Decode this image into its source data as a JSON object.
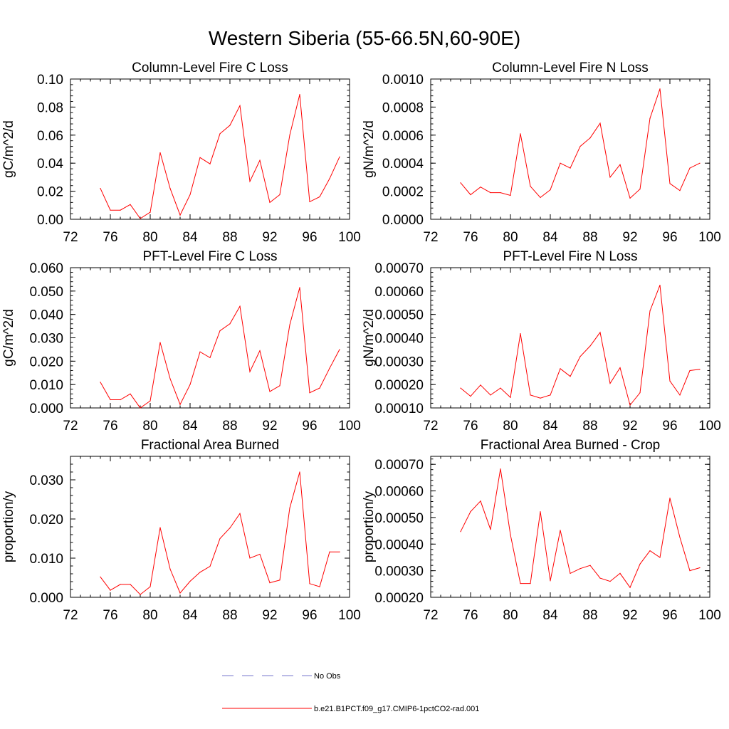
{
  "title": "Western Siberia (55-66.5N,60-90E)",
  "legend": [
    {
      "label": "No Obs",
      "color": "#7777cc",
      "dashed": true
    },
    {
      "label": "b.e21.B1PCT.f09_g17.CMIP6-1pctCO2-rad.001",
      "color": "#ff0000",
      "dashed": false
    }
  ],
  "chart_data": [
    {
      "type": "line",
      "title": "Column-Level Fire C Loss",
      "ylabel": "gC/m^2/d",
      "xlim": [
        72,
        100
      ],
      "ylim": [
        0,
        0.1
      ],
      "xticks": [
        "72",
        "76",
        "80",
        "84",
        "88",
        "92",
        "96",
        "100"
      ],
      "yticks": [
        "0.00",
        "0.02",
        "0.04",
        "0.06",
        "0.08",
        "0.10"
      ],
      "x": [
        75,
        76,
        77,
        78,
        79,
        80,
        81,
        82,
        83,
        84,
        85,
        86,
        87,
        88,
        89,
        90,
        91,
        92,
        93,
        94,
        95,
        96,
        97,
        98,
        99
      ],
      "series": [
        {
          "color": "#ff0000",
          "values": [
            0.022,
            0.0065,
            0.0065,
            0.0105,
            0.0005,
            0.005,
            0.0475,
            0.022,
            0.003,
            0.0175,
            0.044,
            0.0395,
            0.061,
            0.067,
            0.081,
            0.027,
            0.042,
            0.012,
            0.0175,
            0.06,
            0.089,
            0.0125,
            0.016,
            0.029,
            0.0445
          ]
        }
      ]
    },
    {
      "type": "line",
      "title": "Column-Level Fire N Loss",
      "ylabel": "gN/m^2/d",
      "xlim": [
        72,
        100
      ],
      "ylim": [
        0,
        0.001
      ],
      "xticks": [
        "72",
        "76",
        "80",
        "84",
        "88",
        "92",
        "96",
        "100"
      ],
      "yticks": [
        "0.0000",
        "0.0002",
        "0.0004",
        "0.0006",
        "0.0008",
        "0.0010"
      ],
      "x": [
        75,
        76,
        77,
        78,
        79,
        80,
        81,
        82,
        83,
        84,
        85,
        86,
        87,
        88,
        89,
        90,
        91,
        92,
        93,
        94,
        95,
        96,
        97,
        98,
        99
      ],
      "series": [
        {
          "color": "#ff0000",
          "values": [
            0.00026,
            0.000175,
            0.00023,
            0.00019,
            0.00019,
            0.00017,
            0.00061,
            0.000235,
            0.000155,
            0.00021,
            0.0004,
            0.000365,
            0.00052,
            0.00058,
            0.000685,
            0.0003,
            0.00039,
            0.00015,
            0.000215,
            0.00072,
            0.00093,
            0.000255,
            0.000205,
            0.000365,
            0.0004
          ]
        }
      ]
    },
    {
      "type": "line",
      "title": "PFT-Level Fire C Loss",
      "ylabel": "gC/m^2/d",
      "xlim": [
        72,
        100
      ],
      "ylim": [
        0,
        0.06
      ],
      "xticks": [
        "72",
        "76",
        "80",
        "84",
        "88",
        "92",
        "96",
        "100"
      ],
      "yticks": [
        "0.000",
        "0.010",
        "0.020",
        "0.030",
        "0.040",
        "0.050",
        "0.060"
      ],
      "x": [
        75,
        76,
        77,
        78,
        79,
        80,
        81,
        82,
        83,
        84,
        85,
        86,
        87,
        88,
        89,
        90,
        91,
        92,
        93,
        94,
        95,
        96,
        97,
        98,
        99
      ],
      "series": [
        {
          "color": "#ff0000",
          "values": [
            0.011,
            0.0035,
            0.0035,
            0.006,
            0.0,
            0.003,
            0.028,
            0.0125,
            0.0015,
            0.01,
            0.024,
            0.0215,
            0.033,
            0.036,
            0.0435,
            0.0155,
            0.0245,
            0.007,
            0.0095,
            0.0355,
            0.0515,
            0.0065,
            0.0085,
            0.017,
            0.025
          ]
        }
      ]
    },
    {
      "type": "line",
      "title": "PFT-Level Fire N Loss",
      "ylabel": "gN/m^2/d",
      "xlim": [
        72,
        100
      ],
      "ylim": [
        0.0001,
        0.0007
      ],
      "xticks": [
        "72",
        "76",
        "80",
        "84",
        "88",
        "92",
        "96",
        "100"
      ],
      "yticks": [
        "0.00010",
        "0.00020",
        "0.00030",
        "0.00040",
        "0.00050",
        "0.00060",
        "0.00070"
      ],
      "x": [
        75,
        76,
        77,
        78,
        79,
        80,
        81,
        82,
        83,
        84,
        85,
        86,
        87,
        88,
        89,
        90,
        91,
        92,
        93,
        94,
        95,
        96,
        97,
        98,
        99
      ],
      "series": [
        {
          "color": "#ff0000",
          "values": [
            0.000185,
            0.00015,
            0.000198,
            0.000155,
            0.000185,
            0.000145,
            0.000418,
            0.000155,
            0.000142,
            0.000155,
            0.000268,
            0.000235,
            0.00032,
            0.000365,
            0.000423,
            0.000205,
            0.000272,
            0.000112,
            0.000165,
            0.000515,
            0.000625,
            0.000215,
            0.000155,
            0.00026,
            0.000265
          ]
        }
      ]
    },
    {
      "type": "line",
      "title": "Fractional Area Burned",
      "ylabel": "proportion/y",
      "xlim": [
        72,
        100
      ],
      "ylim": [
        0,
        0.036
      ],
      "xticks": [
        "72",
        "76",
        "80",
        "84",
        "88",
        "92",
        "96",
        "100"
      ],
      "yticks": [
        "0.000",
        "0.010",
        "0.020",
        "0.030"
      ],
      "x": [
        75,
        76,
        77,
        78,
        79,
        80,
        81,
        82,
        83,
        84,
        85,
        86,
        87,
        88,
        89,
        90,
        91,
        92,
        93,
        94,
        95,
        96,
        97,
        98,
        99
      ],
      "series": [
        {
          "color": "#ff0000",
          "values": [
            0.0052,
            0.0018,
            0.0033,
            0.0033,
            0.0007,
            0.0027,
            0.0178,
            0.0072,
            0.0011,
            0.0041,
            0.0064,
            0.0079,
            0.015,
            0.0177,
            0.0214,
            0.01,
            0.011,
            0.0037,
            0.0044,
            0.0228,
            0.032,
            0.0035,
            0.0027,
            0.0116,
            0.0116
          ]
        }
      ]
    },
    {
      "type": "line",
      "title": "Fractional Area Burned - Crop",
      "ylabel": "proportion/y",
      "xlim": [
        72,
        100
      ],
      "ylim": [
        0.0002,
        0.00073
      ],
      "xticks": [
        "72",
        "76",
        "80",
        "84",
        "88",
        "92",
        "96",
        "100"
      ],
      "yticks": [
        "0.00020",
        "0.00030",
        "0.00040",
        "0.00050",
        "0.00060",
        "0.00070"
      ],
      "x": [
        75,
        76,
        77,
        78,
        79,
        80,
        81,
        82,
        83,
        84,
        85,
        86,
        87,
        88,
        89,
        90,
        91,
        92,
        93,
        94,
        95,
        96,
        97,
        98,
        99
      ],
      "series": [
        {
          "color": "#ff0000",
          "values": [
            0.000447,
            0.000522,
            0.000562,
            0.000455,
            0.000683,
            0.000435,
            0.000252,
            0.000252,
            0.000522,
            0.000262,
            0.000452,
            0.00029,
            0.000308,
            0.00032,
            0.000272,
            0.00026,
            0.00029,
            0.000237,
            0.000325,
            0.000375,
            0.00035,
            0.000573,
            0.000425,
            0.0003,
            0.000311
          ]
        }
      ]
    }
  ]
}
